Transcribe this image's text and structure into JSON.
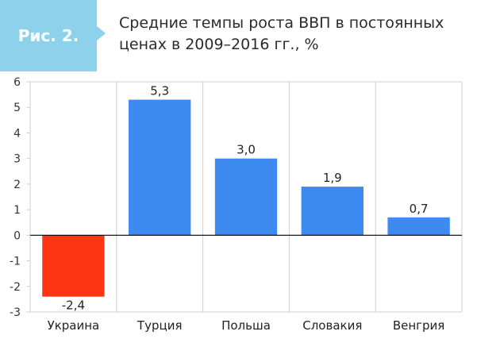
{
  "figure": {
    "label": "Рис. 2.",
    "title": "Средние темпы роста ВВП в постоянных ценах в 2009–2016 гг., %",
    "colors": {
      "badge": "#8ed1ea",
      "positive": "#3d8bf0",
      "negative": "#ff3412",
      "grid": "#cfcfcf",
      "axis": "#000000"
    }
  },
  "chart_data": {
    "type": "bar",
    "title": "Средние темпы роста ВВП в постоянных ценах в 2009–2016 гг., %",
    "categories": [
      "Украина",
      "Турция",
      "Польша",
      "Словакия",
      "Венгрия"
    ],
    "values": [
      -2.4,
      5.3,
      3.0,
      1.9,
      0.7
    ],
    "value_labels": [
      "-2,4",
      "5,3",
      "3,0",
      "1,9",
      "0,7"
    ],
    "ylim": [
      -3,
      6
    ],
    "yticks": [
      6,
      5,
      4,
      3,
      2,
      1,
      0,
      -1,
      -2,
      -3
    ],
    "ytick_labels": [
      "6",
      "5",
      "4",
      "3",
      "2",
      "1",
      "0",
      "-1",
      "-2",
      "-3"
    ],
    "xlabel": "",
    "ylabel": "",
    "grid": "vertical separators between categories",
    "legend": "none"
  }
}
